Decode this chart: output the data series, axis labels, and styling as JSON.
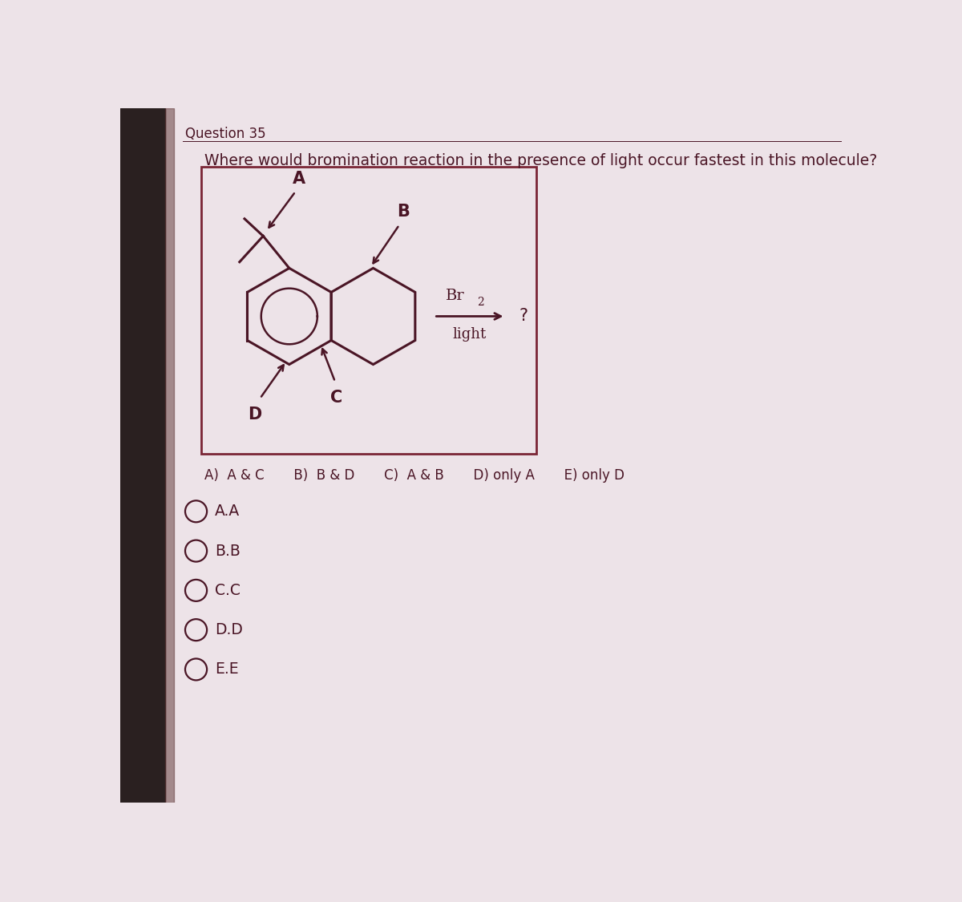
{
  "title": "Question 35",
  "question_text": "Where would bromination reaction in the presence of light occur fastest in this molecule?",
  "bg_color": "#ede3e8",
  "bg_left_strip": "#2a2020",
  "text_color": "#4a1525",
  "box_color": "#7a2535",
  "molecule_color": "#4a1525",
  "radio_color": "#4a1525",
  "answer_line": "A)  A & C       B)  B & D       C)  A & B       D) only A       E) only D",
  "radio_options": [
    "A.A",
    "B.B",
    "C.C",
    "D.D",
    "E.E"
  ],
  "br2_label": "Br",
  "br2_sub": "2",
  "light_label": "light",
  "question_mark": "?"
}
